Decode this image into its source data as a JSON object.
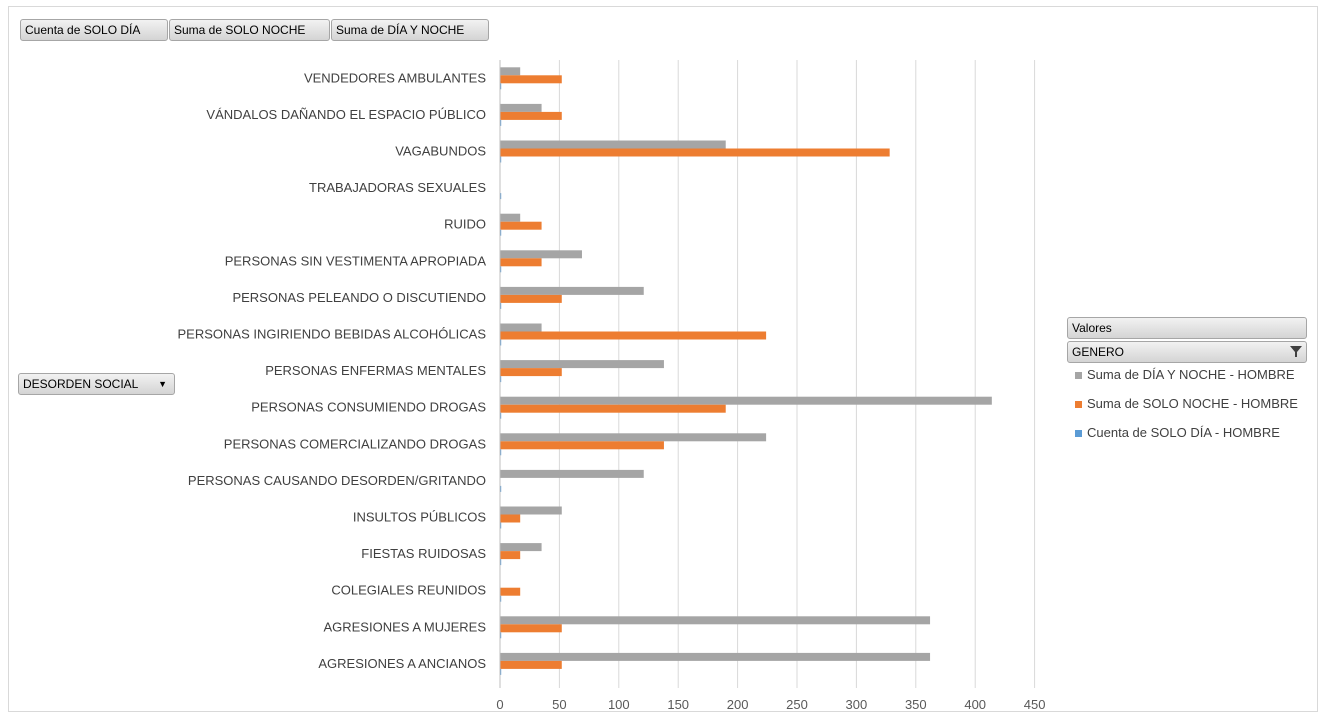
{
  "filter_buttons": [
    {
      "label": "Cuenta de SOLO DÍA"
    },
    {
      "label": "Suma de SOLO NOCHE"
    },
    {
      "label": "Suma de DÍA Y NOCHE"
    }
  ],
  "row_field": {
    "label": "DESORDEN SOCIAL",
    "arrow": "▼"
  },
  "legend": {
    "header": "Valores",
    "field": "GENERO",
    "filter_icon": "filter-dropdown-icon",
    "entries": [
      {
        "label": "Suma de DÍA Y NOCHE - HOMBRE",
        "color": "#a5a5a5"
      },
      {
        "label": "Suma de SOLO NOCHE - HOMBRE",
        "color": "#ed7d31"
      },
      {
        "label": "Cuenta de SOLO DÍA - HOMBRE",
        "color": "#5b9bd5"
      }
    ]
  },
  "chart_data": {
    "type": "bar",
    "orientation": "horizontal",
    "categories": [
      "VENDEDORES AMBULANTES",
      "VÁNDALOS DAÑANDO EL ESPACIO PÚBLICO",
      "VAGABUNDOS",
      "TRABAJADORAS SEXUALES",
      "RUIDO",
      "PERSONAS SIN VESTIMENTA APROPIADA",
      "PERSONAS PELEANDO O DISCUTIENDO",
      "PERSONAS INGIRIENDO BEBIDAS ALCOHÓLICAS",
      "PERSONAS ENFERMAS MENTALES",
      "PERSONAS CONSUMIENDO DROGAS",
      "PERSONAS COMERCIALIZANDO DROGAS",
      "PERSONAS CAUSANDO DESORDEN/GRITANDO",
      "INSULTOS PÚBLICOS",
      "FIESTAS RUIDOSAS",
      "COLEGIALES REUNIDOS",
      "AGRESIONES A MUJERES",
      "AGRESIONES A ANCIANOS"
    ],
    "series": [
      {
        "name": "Suma de DÍA Y NOCHE - HOMBRE",
        "color": "#a5a5a5",
        "values": [
          17,
          35,
          190,
          0,
          17,
          69,
          121,
          35,
          138,
          414,
          224,
          121,
          52,
          35,
          0,
          362,
          362
        ]
      },
      {
        "name": "Suma de SOLO NOCHE - HOMBRE",
        "color": "#ed7d31",
        "values": [
          52,
          52,
          328,
          0,
          35,
          35,
          52,
          224,
          52,
          190,
          138,
          0,
          17,
          17,
          17,
          52,
          52
        ]
      },
      {
        "name": "Cuenta de SOLO DÍA - HOMBRE",
        "color": "#5b9bd5",
        "values": [
          1,
          1,
          1,
          1,
          1,
          1,
          1,
          1,
          1,
          1,
          1,
          1,
          1,
          1,
          1,
          1,
          1
        ]
      }
    ],
    "xlim": [
      0,
      450
    ],
    "xticks": [
      0,
      50,
      100,
      150,
      200,
      250,
      300,
      350,
      400,
      450
    ],
    "grid": true,
    "legend_position": "right"
  }
}
